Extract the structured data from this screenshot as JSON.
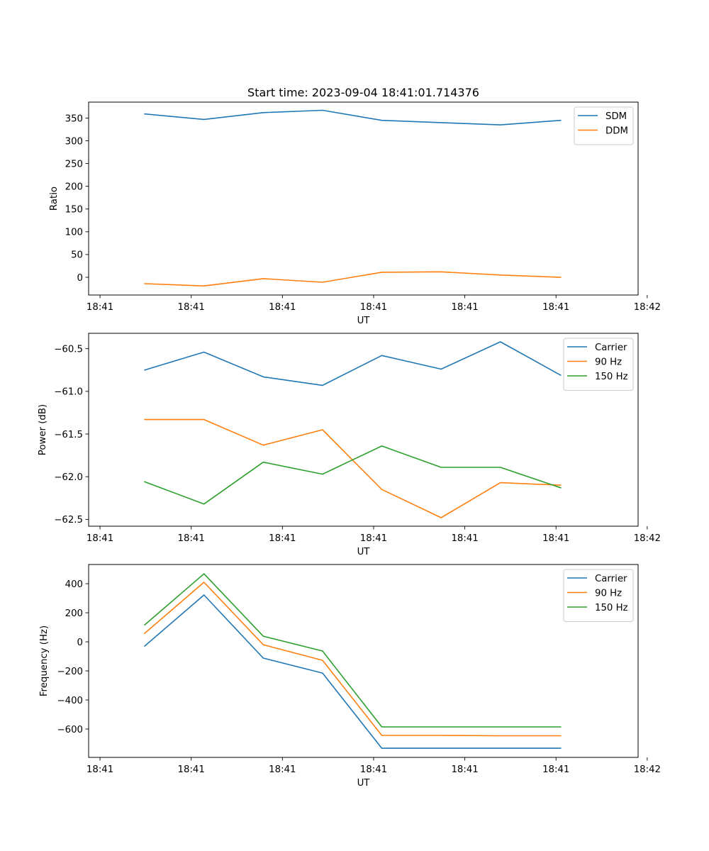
{
  "figure": {
    "title": "Start time: 2023-09-04 18:41:01.714376"
  },
  "chart_data": [
    {
      "type": "line",
      "title": "Start time: 2023-09-04 18:41:01.714376",
      "xlabel": "UT",
      "ylabel": "Ratio",
      "x_tick_labels": [
        "18:41",
        "18:41",
        "18:41",
        "18:41",
        "18:41",
        "18:41",
        "18:42"
      ],
      "x_ticks": [
        0,
        1,
        2,
        3,
        4,
        5,
        6
      ],
      "xlim": [
        -0.125,
        5.9
      ],
      "x": [
        0.49,
        1.14,
        1.79,
        2.44,
        3.09,
        3.74,
        4.39,
        5.05
      ],
      "yticks": [
        0,
        50,
        100,
        150,
        200,
        250,
        300,
        350
      ],
      "ylim": [
        -39,
        385
      ],
      "grid": false,
      "legend_position": "top-right",
      "series": [
        {
          "name": "SDM",
          "color": "#1f77b4",
          "values": [
            359,
            347,
            362,
            367,
            345,
            340,
            335,
            345
          ]
        },
        {
          "name": "DDM",
          "color": "#ff7f0e",
          "values": [
            -14,
            -19,
            -3,
            -11,
            11,
            12,
            5,
            0
          ]
        }
      ]
    },
    {
      "type": "line",
      "title": "",
      "xlabel": "UT",
      "ylabel": "Power (dB)",
      "x_tick_labels": [
        "18:41",
        "18:41",
        "18:41",
        "18:41",
        "18:41",
        "18:41",
        "18:42"
      ],
      "x_ticks": [
        0,
        1,
        2,
        3,
        4,
        5,
        6
      ],
      "xlim": [
        -0.125,
        5.9
      ],
      "x": [
        0.49,
        1.14,
        1.79,
        2.44,
        3.09,
        3.74,
        4.39,
        5.05
      ],
      "yticks": [
        -62.5,
        -62.0,
        -61.5,
        -61.0,
        -60.5
      ],
      "ytick_labels": [
        "−62.5",
        "−62.0",
        "−61.5",
        "−61.0",
        "−60.5"
      ],
      "ylim": [
        -62.58,
        -60.32
      ],
      "grid": false,
      "legend_position": "top-right",
      "series": [
        {
          "name": "Carrier",
          "color": "#1f77b4",
          "values": [
            -60.75,
            -60.54,
            -60.83,
            -60.93,
            -60.58,
            -60.74,
            -60.42,
            -60.81
          ]
        },
        {
          "name": "90 Hz",
          "color": "#ff7f0e",
          "values": [
            -61.33,
            -61.33,
            -61.63,
            -61.45,
            -62.15,
            -62.48,
            -62.07,
            -62.1
          ]
        },
        {
          "name": "150 Hz",
          "color": "#2ca02c",
          "values": [
            -62.06,
            -62.32,
            -61.83,
            -61.97,
            -61.64,
            -61.89,
            -61.89,
            -62.13
          ]
        }
      ]
    },
    {
      "type": "line",
      "title": "",
      "xlabel": "UT",
      "ylabel": "Frequency (Hz)",
      "x_tick_labels": [
        "18:41",
        "18:41",
        "18:41",
        "18:41",
        "18:41",
        "18:41",
        "18:42"
      ],
      "x_ticks": [
        0,
        1,
        2,
        3,
        4,
        5,
        6
      ],
      "xlim": [
        -0.125,
        5.9
      ],
      "x": [
        0.49,
        1.14,
        1.79,
        2.44,
        3.09,
        3.74,
        4.39,
        5.05
      ],
      "yticks": [
        -600,
        -400,
        -200,
        0,
        200,
        400
      ],
      "ytick_labels": [
        "−600",
        "−400",
        "−200",
        "0",
        "200",
        "400"
      ],
      "ylim": [
        -795,
        532
      ],
      "grid": false,
      "legend_position": "top-right",
      "series": [
        {
          "name": "Carrier",
          "color": "#1f77b4",
          "values": [
            -29,
            322,
            -112,
            -215,
            -732,
            -732,
            -732,
            -732
          ]
        },
        {
          "name": "90 Hz",
          "color": "#ff7f0e",
          "values": [
            59,
            410,
            -20,
            -127,
            -644,
            -644,
            -646,
            -646
          ]
        },
        {
          "name": "150 Hz",
          "color": "#2ca02c",
          "values": [
            117,
            468,
            39,
            -63,
            -585,
            -585,
            -585,
            -585
          ]
        }
      ]
    }
  ]
}
